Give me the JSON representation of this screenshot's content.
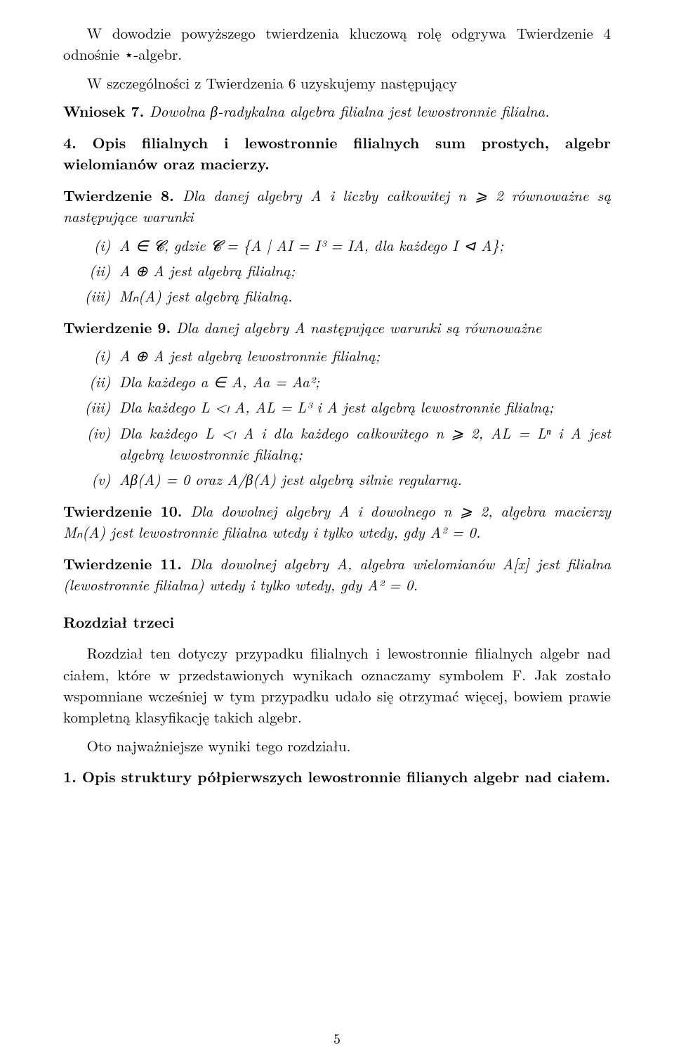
{
  "p1": "W dowodzie powyższego twierdzenia kluczową rolę odgrywa Twierdzenie 4 odnośnie ⋆-algebr.",
  "p2": "W szczególności z Twierdzenia 6 uzyskujemy następujący",
  "wniosek7": {
    "label": "Wniosek 7.",
    "text": " Dowolna β-radykalna algebra filialna jest lewostronnie filialna."
  },
  "heading_section4": "4. Opis filialnych i lewostronnie filialnych sum prostych, algebr wielomianów oraz macierzy.",
  "tw8": {
    "label": "Twierdzenie 8.",
    "intro": " Dla danej algebry A i liczby całkowitej n ⩾ 2 równoważne są następujące warunki",
    "items": [
      {
        "label": "(i)",
        "text": "A ∈ 𝓒, gdzie 𝓒 = {A | AI = I³ = IA, dla każdego I ⊲ A};"
      },
      {
        "label": "(ii)",
        "text": "A ⊕ A jest algebrą filialną;"
      },
      {
        "label": "(iii)",
        "text": "Mₙ(A) jest algebrą filialną."
      }
    ]
  },
  "tw9": {
    "label": "Twierdzenie 9.",
    "intro": " Dla danej algebry A następujące warunki są równoważne",
    "items": [
      {
        "label": "(i)",
        "text": "A ⊕ A jest algebrą lewostronnie filialną;"
      },
      {
        "label": "(ii)",
        "text": "Dla każdego a ∈ A, Aa = Aa²;"
      },
      {
        "label": "(iii)",
        "text": "Dla każdego L <ₗ A, AL = L³ i A jest algebrą lewostronnie filialną;"
      },
      {
        "label": "(iv)",
        "text": "Dla każdego L <ₗ A i dla każdego całkowitego n ⩾ 2, AL = Lⁿ i A jest algebrą lewostronnie filialną;"
      },
      {
        "label": "(v)",
        "text": "Aβ(A) = 0 oraz A/β(A) jest algebrą silnie regularną."
      }
    ]
  },
  "tw10": {
    "label": "Twierdzenie 10.",
    "text": " Dla dowolnej algebry A i dowolnego n ⩾ 2, algebra macierzy Mₙ(A) jest lewostronnie filialna wtedy i tylko wtedy, gdy A² = 0."
  },
  "tw11": {
    "label": "Twierdzenie 11.",
    "text": " Dla dowolnej algebry A, algebra wielomianów A[x] jest filialna (lewostronnie filialna) wtedy i tylko wtedy, gdy A² = 0."
  },
  "rozdzial3_title": "Rozdział trzeci",
  "p_rozdzial3": "Rozdział ten dotyczy przypadku filialnych i lewostronnie filialnych algebr nad ciałem, które w przedstawionych wynikach oznaczamy symbolem F. Jak zostało wspomniane wcześniej w tym przypadku udało się otrzymać więcej, bowiem prawie kompletną klasyfikację takich algebr.",
  "p_wynik_intro": "Oto najważniejsze wyniki tego rozdziału.",
  "section1_heading": "1. Opis struktury półpierwszych lewostronnie filianych algebr nad ciałem.",
  "page_number": "5"
}
